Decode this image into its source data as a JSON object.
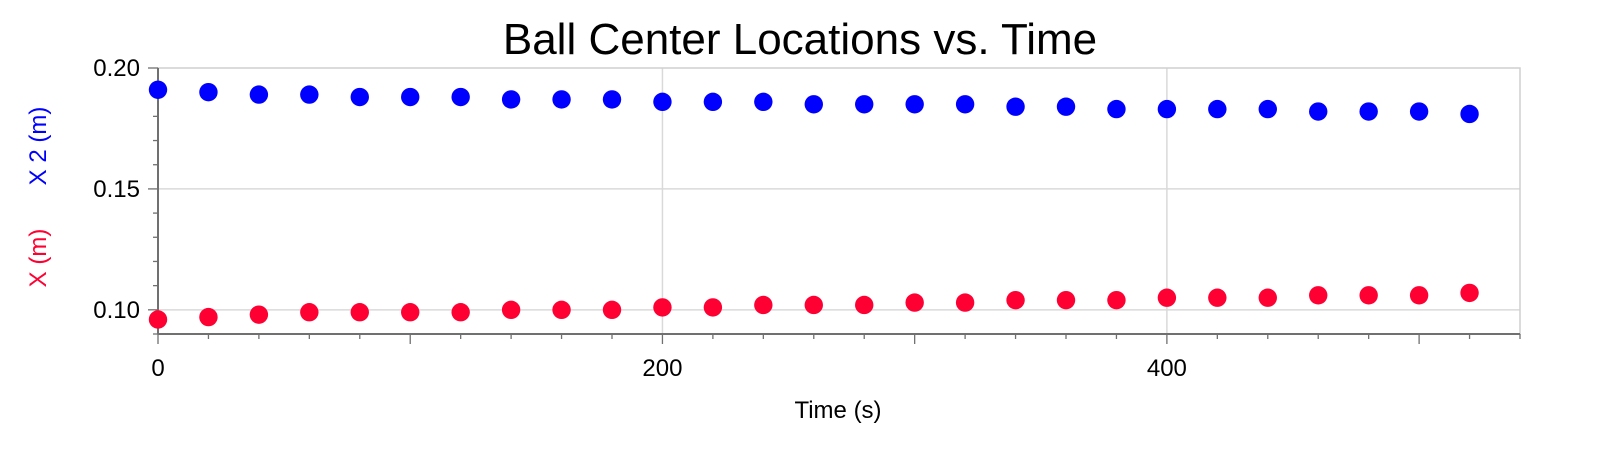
{
  "chart_data": {
    "type": "scatter",
    "title": "Ball Center Locations vs. Time",
    "xlabel": "Time (s)",
    "ylabel_series": [
      {
        "text": "X (m)",
        "color": "#ff0033"
      },
      {
        "text": "X 2 (m)",
        "color": "#0000ff"
      }
    ],
    "xlim": [
      0,
      540
    ],
    "ylim": [
      0.09,
      0.2
    ],
    "x_ticks": [
      0,
      200,
      400
    ],
    "x_tick_labels": [
      "0",
      "200",
      "400"
    ],
    "y_ticks": [
      0.1,
      0.15,
      0.2
    ],
    "y_tick_labels": [
      "0.10",
      "0.15",
      "0.20"
    ],
    "grid": true,
    "series": [
      {
        "color": "#ff0033",
        "x": [
          0,
          20,
          40,
          60,
          80,
          100,
          120,
          140,
          160,
          180,
          200,
          220,
          240,
          260,
          280,
          300,
          320,
          340,
          360,
          380,
          400,
          420,
          440,
          460,
          480,
          500,
          520
        ],
        "y": [
          0.096,
          0.097,
          0.098,
          0.099,
          0.099,
          0.099,
          0.099,
          0.1,
          0.1,
          0.1,
          0.101,
          0.101,
          0.102,
          0.102,
          0.102,
          0.103,
          0.103,
          0.104,
          0.104,
          0.104,
          0.105,
          0.105,
          0.105,
          0.106,
          0.106,
          0.106,
          0.107
        ]
      },
      {
        "color": "#0000ff",
        "x": [
          0,
          20,
          40,
          60,
          80,
          100,
          120,
          140,
          160,
          180,
          200,
          220,
          240,
          260,
          280,
          300,
          320,
          340,
          360,
          380,
          400,
          420,
          440,
          460,
          480,
          500,
          520
        ],
        "y": [
          0.191,
          0.19,
          0.189,
          0.189,
          0.188,
          0.188,
          0.188,
          0.187,
          0.187,
          0.187,
          0.186,
          0.186,
          0.186,
          0.185,
          0.185,
          0.185,
          0.185,
          0.184,
          0.184,
          0.183,
          0.183,
          0.183,
          0.183,
          0.182,
          0.182,
          0.182,
          0.181
        ]
      }
    ]
  }
}
